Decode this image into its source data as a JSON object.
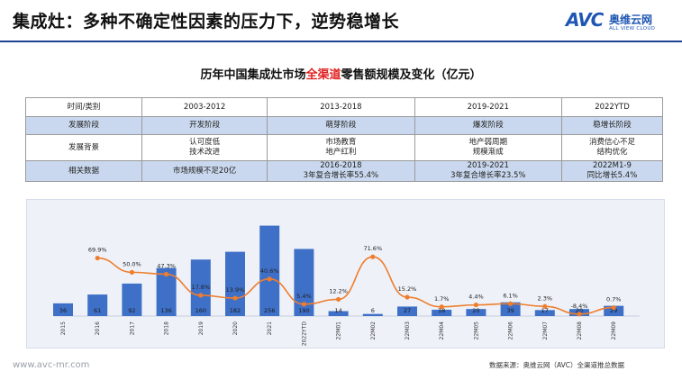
{
  "header": {
    "title": "集成灶：多种不确定性因素的压力下，逆势稳增长",
    "logo_text": "AVC",
    "logo_cn": "奥维云网",
    "logo_en": "ALL VIEW CLOUD"
  },
  "chart_heading": {
    "pre": "历年中国集成灶市场",
    "highlight": "全渠道",
    "post": "零售额规模及变化（亿元）"
  },
  "table": {
    "header": [
      "时间/类别",
      "2003-2012",
      "2013-2018",
      "2019-2021",
      "2022YTD"
    ],
    "rows": [
      {
        "style": "blue",
        "cells": [
          "发展阶段",
          "开发阶段",
          "萌芽阶段",
          "爆发阶段",
          "稳增长阶段"
        ]
      },
      {
        "style": "plain",
        "cells": [
          "发展背景",
          "认可度低\n技术改进",
          "市场教育\n地产红利",
          "地产弱周期\n规模渐成",
          "消费信心不足\n结构优化"
        ]
      },
      {
        "style": "blue",
        "cells": [
          "相关数据",
          "市场规模不足20亿",
          "2016-2018\n3年复合增长率55.4%",
          "2019-2021\n3年复合增长率23.5%",
          "2022M1-9\n同比增长5.4%"
        ]
      }
    ]
  },
  "chart_data": {
    "type": "bar",
    "categories": [
      "2015",
      "2016",
      "2017",
      "2018",
      "2019",
      "2020",
      "2021",
      "2022YTD",
      "22M01",
      "22M02",
      "22M03",
      "22M04",
      "22M05",
      "22M06",
      "22M07",
      "22M08",
      "22M09"
    ],
    "series": [
      {
        "values": [
          36,
          61,
          92,
          136,
          160,
          182,
          256,
          190,
          14,
          6,
          27,
          18,
          20,
          39,
          17,
          20,
          29
        ]
      },
      {
        "values": [
          null,
          69.9,
          50.0,
          47.3,
          17.8,
          13.9,
          40.6,
          5.4,
          12.2,
          71.6,
          15.2,
          1.7,
          4.4,
          6.1,
          2.3,
          -8.4,
          0.7
        ]
      }
    ],
    "value_labels": [
      "36",
      "61",
      "92",
      "136",
      "160",
      "182",
      "256",
      "190",
      "14",
      "6",
      "27",
      "18",
      "20",
      "39",
      "17",
      "20",
      "29"
    ],
    "growth_labels": [
      "",
      "69.9%",
      "50.0%",
      "47.3%",
      "17.8%",
      "13.9%",
      "40.6%",
      "5.4%",
      "12.2%",
      "71.6%",
      "15.2%",
      "1.7%",
      "4.4%",
      "6.1%",
      "2.3%",
      "-8.4%",
      "0.7%"
    ],
    "bar_color": "#3f70c8",
    "line_color": "#ef7d2d",
    "ylim_bars": [
      0,
      260
    ],
    "ylim_growth": [
      -20,
      90
    ]
  },
  "footer": {
    "url": "www.avc-mr.com",
    "source": "数据来源：奥维云网（AVC）全渠道推总数据"
  }
}
